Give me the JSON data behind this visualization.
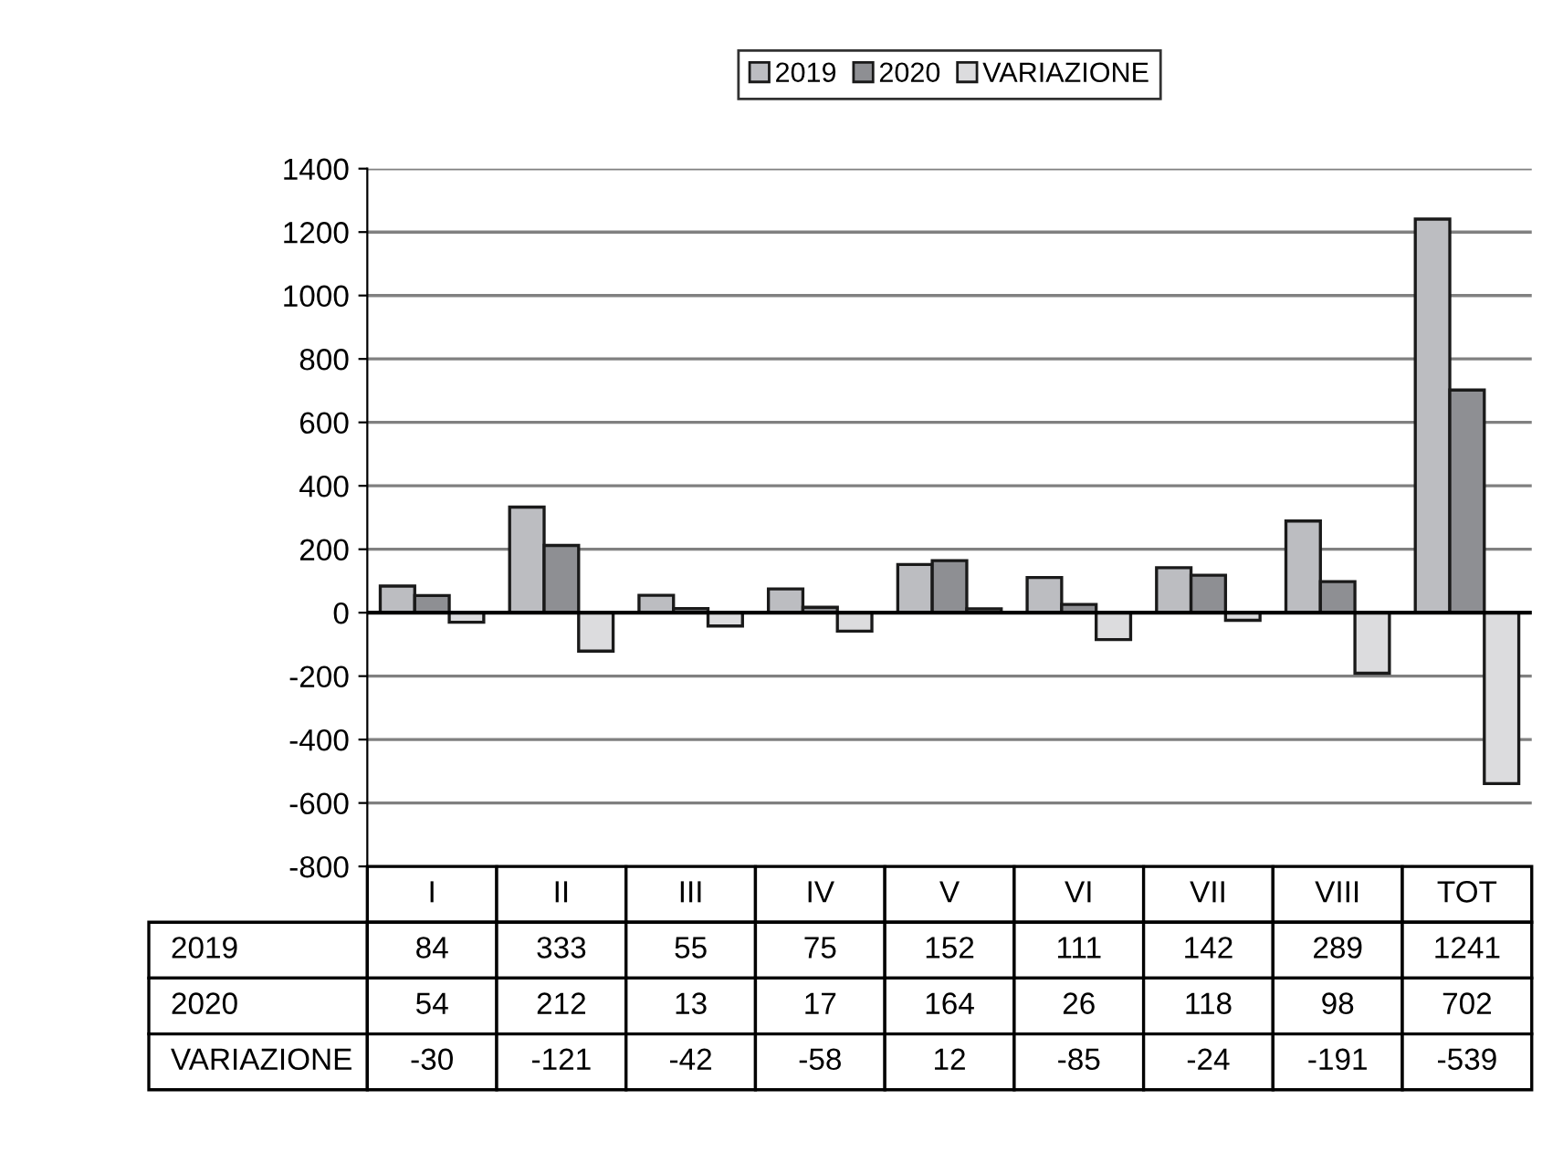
{
  "chart_data": {
    "type": "bar",
    "categories": [
      "I",
      "II",
      "III",
      "IV",
      "V",
      "VI",
      "VII",
      "VIII",
      "TOT"
    ],
    "series": [
      {
        "name": "2019",
        "color": "#bcbdc1",
        "values": [
          84,
          333,
          55,
          75,
          152,
          111,
          142,
          289,
          1241
        ]
      },
      {
        "name": "2020",
        "color": "#8e8f93",
        "values": [
          54,
          212,
          13,
          17,
          164,
          26,
          118,
          98,
          702
        ]
      },
      {
        "name": "VARIAZIONE",
        "color": "#dcdcde",
        "values": [
          -30,
          -121,
          -42,
          -58,
          12,
          -85,
          -24,
          -191,
          -539
        ]
      }
    ],
    "ylim": [
      -800,
      1400
    ],
    "yticks": [
      -800,
      -600,
      -400,
      -200,
      0,
      200,
      400,
      600,
      800,
      1000,
      1200,
      1400
    ],
    "grid": "y",
    "legend": "top",
    "data_labels": true
  }
}
